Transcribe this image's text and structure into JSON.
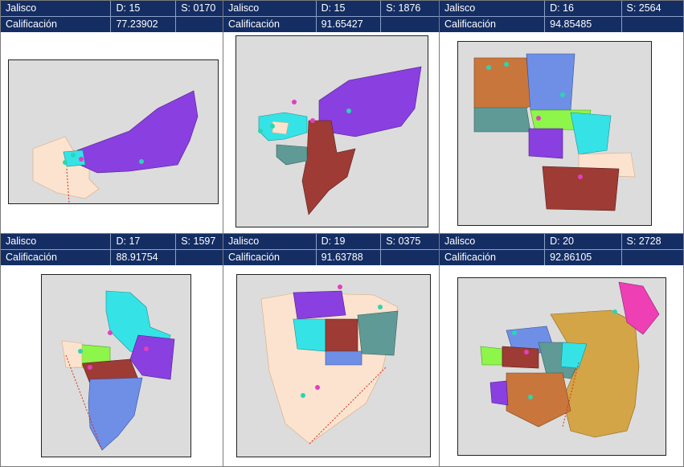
{
  "colors": {
    "header_bg": "#142d63",
    "purple": "#8a3fe0",
    "cyan": "#35e3e6",
    "teal": "#5f9a96",
    "brown": "#9e3b35",
    "peach": "#fbe3cf",
    "orange": "#c9763c",
    "blue": "#6f8fe6",
    "green": "#8ef54a",
    "gold": "#d4a546",
    "magenta": "#ee3fb5"
  },
  "panels": [
    {
      "state": "Jalisco",
      "district": "D: 15",
      "section": "S: 0170",
      "score_label": "Calificación",
      "score": "77.23902"
    },
    {
      "state": "Jalisco",
      "district": "D: 15",
      "section": "S: 1876",
      "score_label": "Calificación",
      "score": "91.65427"
    },
    {
      "state": "Jalisco",
      "district": "D: 16",
      "section": "S: 2564",
      "score_label": "Calificación",
      "score": "94.85485"
    },
    {
      "state": "Jalisco",
      "district": "D: 17",
      "section": "S: 1597",
      "score_label": "Calificación",
      "score": "88.91754"
    },
    {
      "state": "Jalisco",
      "district": "D: 19",
      "section": "S: 0375",
      "score_label": "Calificación",
      "score": "91.63788"
    },
    {
      "state": "Jalisco",
      "district": "D: 20",
      "section": "S: 2728",
      "score_label": "Calificación",
      "score": "92.86105"
    }
  ]
}
